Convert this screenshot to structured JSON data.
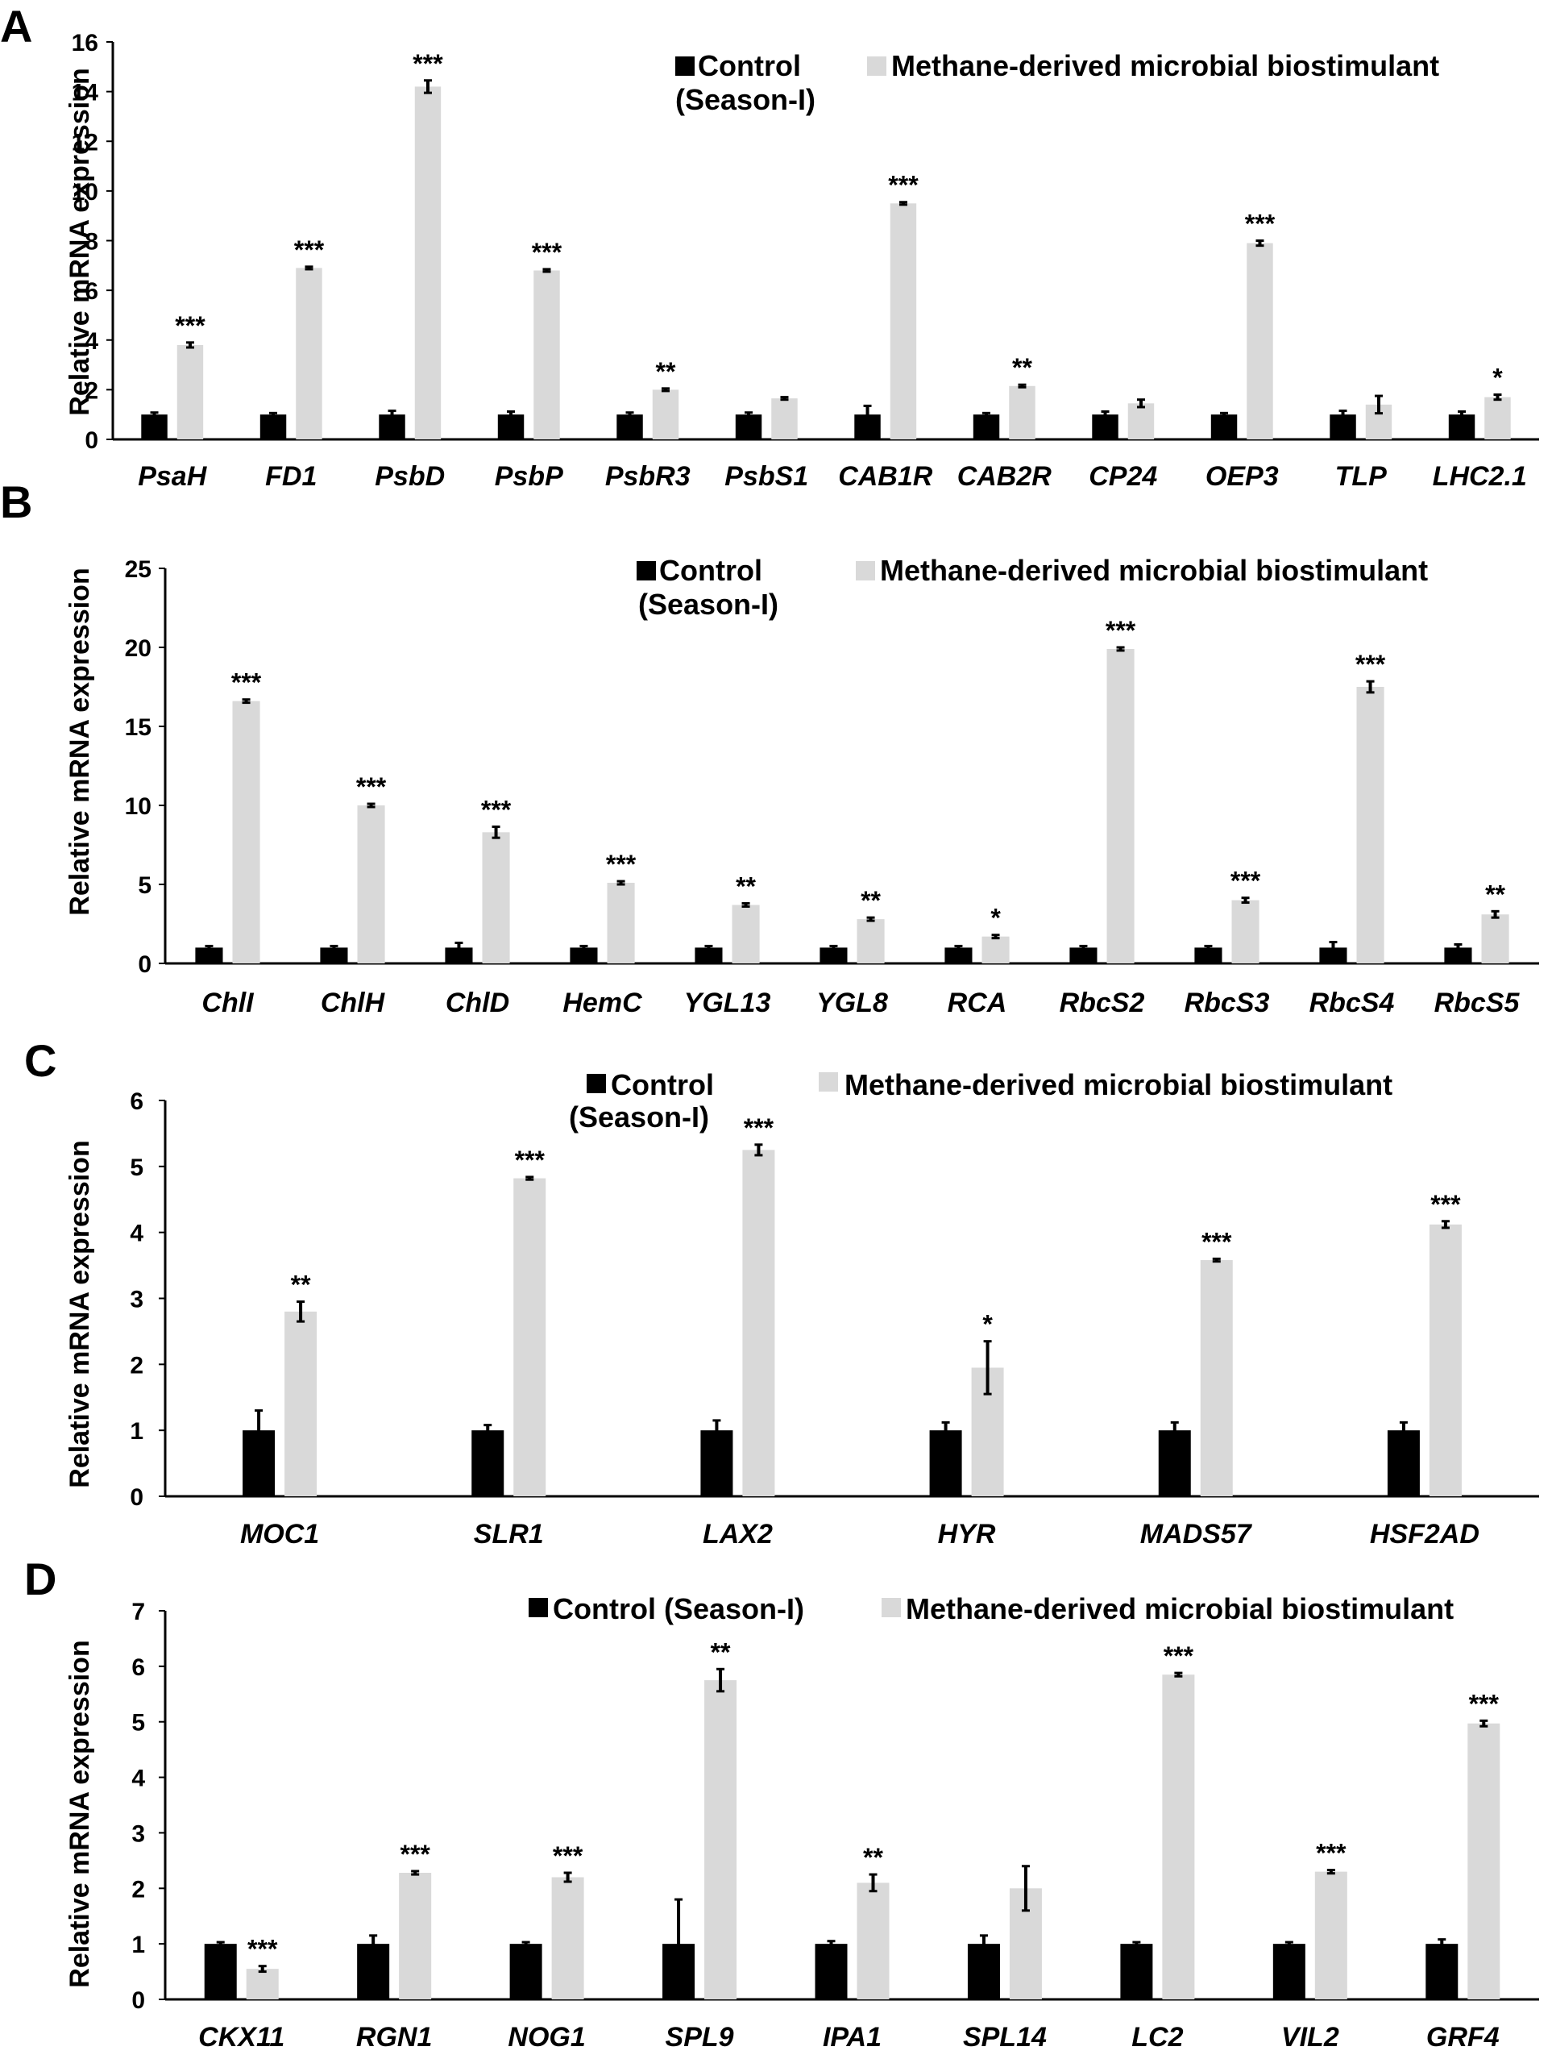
{
  "colors": {
    "control": "#000000",
    "treatment": "#d9d9d9",
    "axis": "#000000"
  },
  "chart_data": [
    {
      "panel": "A",
      "type": "bar",
      "ylabel": "Relative mRNA expression",
      "ylim": [
        0,
        16
      ],
      "yticks": [
        0,
        2,
        4,
        6,
        8,
        10,
        12,
        14,
        16
      ],
      "legend": {
        "control_line1": "Control",
        "control_line2": "(Season-I)",
        "treatment": "Methane-derived microbial biostimulant"
      },
      "categories": [
        "PsaH",
        "FD1",
        "PsbD",
        "PsbP",
        "PsbR3",
        "PsbS1",
        "CAB1R",
        "CAB2R",
        "CP24",
        "OEP3",
        "TLP",
        "LHC2.1"
      ],
      "series": [
        {
          "name": "Control (Season-I)",
          "values": [
            1,
            1,
            1,
            1,
            1,
            1,
            1,
            1,
            1,
            1,
            1,
            1
          ],
          "errors": [
            0.08,
            0.06,
            0.15,
            0.12,
            0.08,
            0.08,
            0.35,
            0.06,
            0.12,
            0.06,
            0.15,
            0.12
          ]
        },
        {
          "name": "Methane-derived microbial biostimulant",
          "values": [
            3.8,
            6.9,
            14.2,
            6.8,
            2.0,
            1.65,
            9.5,
            2.15,
            1.45,
            7.9,
            1.4,
            1.7
          ],
          "errors": [
            0.1,
            0.05,
            0.25,
            0.05,
            0.05,
            0.05,
            0.05,
            0.05,
            0.15,
            0.1,
            0.35,
            0.1
          ]
        }
      ],
      "significance": [
        "***",
        "***",
        "***",
        "***",
        "**",
        "",
        "***",
        "**",
        "",
        "***",
        "",
        "*"
      ]
    },
    {
      "panel": "B",
      "type": "bar",
      "ylabel": "Relative mRNA expression",
      "ylim": [
        0,
        25
      ],
      "yticks": [
        0,
        5,
        10,
        15,
        20,
        25
      ],
      "legend": {
        "control_line1": "Control",
        "control_line2": "(Season-I)",
        "treatment": "Methane-derived microbial biostimulant"
      },
      "categories": [
        "ChlI",
        "ChlH",
        "ChlD",
        "HemC",
        "YGL13",
        "YGL8",
        "RCA",
        "RbcS2",
        "RbcS3",
        "RbcS4",
        "RbcS5"
      ],
      "series": [
        {
          "name": "Control (Season-I)",
          "values": [
            1,
            1,
            1,
            1,
            1,
            1,
            1,
            1,
            1,
            1,
            1
          ],
          "errors": [
            0.1,
            0.1,
            0.3,
            0.1,
            0.1,
            0.1,
            0.1,
            0.1,
            0.1,
            0.35,
            0.2
          ]
        },
        {
          "name": "Methane-derived microbial biostimulant",
          "values": [
            16.6,
            10.0,
            8.3,
            5.1,
            3.7,
            2.8,
            1.7,
            19.9,
            4.0,
            17.5,
            3.1
          ],
          "errors": [
            0.1,
            0.1,
            0.35,
            0.1,
            0.1,
            0.1,
            0.1,
            0.1,
            0.15,
            0.35,
            0.2
          ]
        }
      ],
      "significance": [
        "***",
        "***",
        "***",
        "***",
        "**",
        "**",
        "*",
        "***",
        "***",
        "***",
        "**"
      ]
    },
    {
      "panel": "C",
      "type": "bar",
      "ylabel": "Relative mRNA expression",
      "ylim": [
        0,
        6
      ],
      "yticks": [
        0,
        1,
        2,
        3,
        4,
        5,
        6
      ],
      "legend": {
        "control_line1": "Control",
        "control_line2": "(Season-I)",
        "treatment": "Methane-derived microbial biostimulant"
      },
      "categories": [
        "MOC1",
        "SLR1",
        "LAX2",
        "HYR",
        "MADS57",
        "HSF2AD"
      ],
      "series": [
        {
          "name": "Control (Season-I)",
          "values": [
            1,
            1,
            1,
            1,
            1,
            1
          ],
          "errors": [
            0.3,
            0.08,
            0.15,
            0.12,
            0.12,
            0.12
          ]
        },
        {
          "name": "Methane-derived microbial biostimulant",
          "values": [
            2.8,
            4.82,
            5.25,
            1.95,
            3.58,
            4.12
          ],
          "errors": [
            0.15,
            0.02,
            0.08,
            0.4,
            0.02,
            0.05
          ]
        }
      ],
      "significance": [
        "**",
        "***",
        "***",
        "*",
        "***",
        "***"
      ]
    },
    {
      "panel": "D",
      "type": "bar",
      "ylabel": "Relative mRNA expression",
      "ylim": [
        0,
        7
      ],
      "yticks": [
        0,
        1,
        2,
        3,
        4,
        5,
        6,
        7
      ],
      "legend": {
        "control_line1": "Control (Season-I)",
        "control_line2": "",
        "treatment": "Methane-derived microbial biostimulant"
      },
      "categories": [
        "CKX11",
        "RGN1",
        "NOG1",
        "SPL9",
        "IPA1",
        "SPL14",
        "LC2",
        "VIL2",
        "GRF4"
      ],
      "series": [
        {
          "name": "Control (Season-I)",
          "values": [
            1,
            1,
            1,
            1,
            1,
            1,
            1,
            1,
            1
          ],
          "errors": [
            0.03,
            0.15,
            0.03,
            0.8,
            0.05,
            0.15,
            0.03,
            0.03,
            0.08
          ]
        },
        {
          "name": "Methane-derived microbial biostimulant",
          "values": [
            0.55,
            2.28,
            2.2,
            5.75,
            2.1,
            2.0,
            5.85,
            2.3,
            4.97
          ],
          "errors": [
            0.05,
            0.03,
            0.08,
            0.2,
            0.15,
            0.4,
            0.03,
            0.03,
            0.05
          ]
        }
      ],
      "significance": [
        "***",
        "***",
        "***",
        "**",
        "**",
        "",
        "***",
        "***",
        "***"
      ]
    }
  ]
}
